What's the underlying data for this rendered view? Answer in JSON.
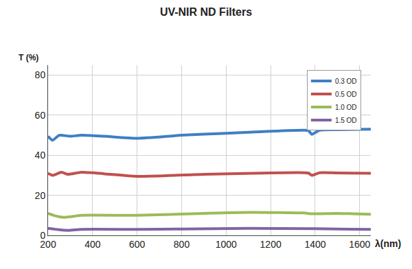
{
  "chart_data": {
    "type": "line",
    "title": "UV-NIR ND Filters",
    "x_label": "λ(nm)",
    "y_label": "T (%)",
    "series": [
      {
        "name": "0.3 OD",
        "color": "#3f7fc4",
        "x": [
          200,
          220,
          250,
          300,
          350,
          450,
          600,
          800,
          1000,
          1200,
          1350,
          1370,
          1385,
          1420,
          1500,
          1650
        ],
        "values": [
          49.5,
          47.5,
          50,
          49.5,
          50,
          49.5,
          48.5,
          50,
          51,
          52,
          52.5,
          52.3,
          50.5,
          52.5,
          52.8,
          53
        ]
      },
      {
        "name": "0.5 OD",
        "color": "#c0504d",
        "x": [
          200,
          220,
          260,
          290,
          350,
          450,
          600,
          900,
          1200,
          1350,
          1370,
          1385,
          1420,
          1500,
          1650
        ],
        "values": [
          31,
          30,
          31.5,
          30.5,
          31.5,
          30.8,
          29.5,
          30.5,
          31.2,
          31.3,
          31.1,
          30,
          31.3,
          31.2,
          31
        ]
      },
      {
        "name": "1.0 OD",
        "color": "#9bbb59",
        "x": [
          200,
          230,
          270,
          300,
          350,
          600,
          900,
          1100,
          1350,
          1385,
          1500,
          1650
        ],
        "values": [
          11,
          9.8,
          9,
          9.3,
          10,
          10,
          11,
          11.5,
          11.2,
          10.8,
          11,
          10.5
        ]
      },
      {
        "name": "1.5 OD",
        "color": "#8064a2",
        "x": [
          200,
          250,
          290,
          350,
          600,
          800,
          1100,
          1400,
          1650
        ],
        "values": [
          3.5,
          2.8,
          2.5,
          3,
          3,
          3.2,
          3.5,
          3.3,
          3
        ]
      }
    ],
    "xlim": [
      200,
      1650
    ],
    "xticks": [
      200,
      400,
      600,
      800,
      1000,
      1200,
      1400,
      1600
    ],
    "ylim": [
      0,
      85
    ],
    "yticks": [
      0,
      20,
      40,
      60,
      80
    ],
    "grid": true,
    "legend": "top right"
  }
}
